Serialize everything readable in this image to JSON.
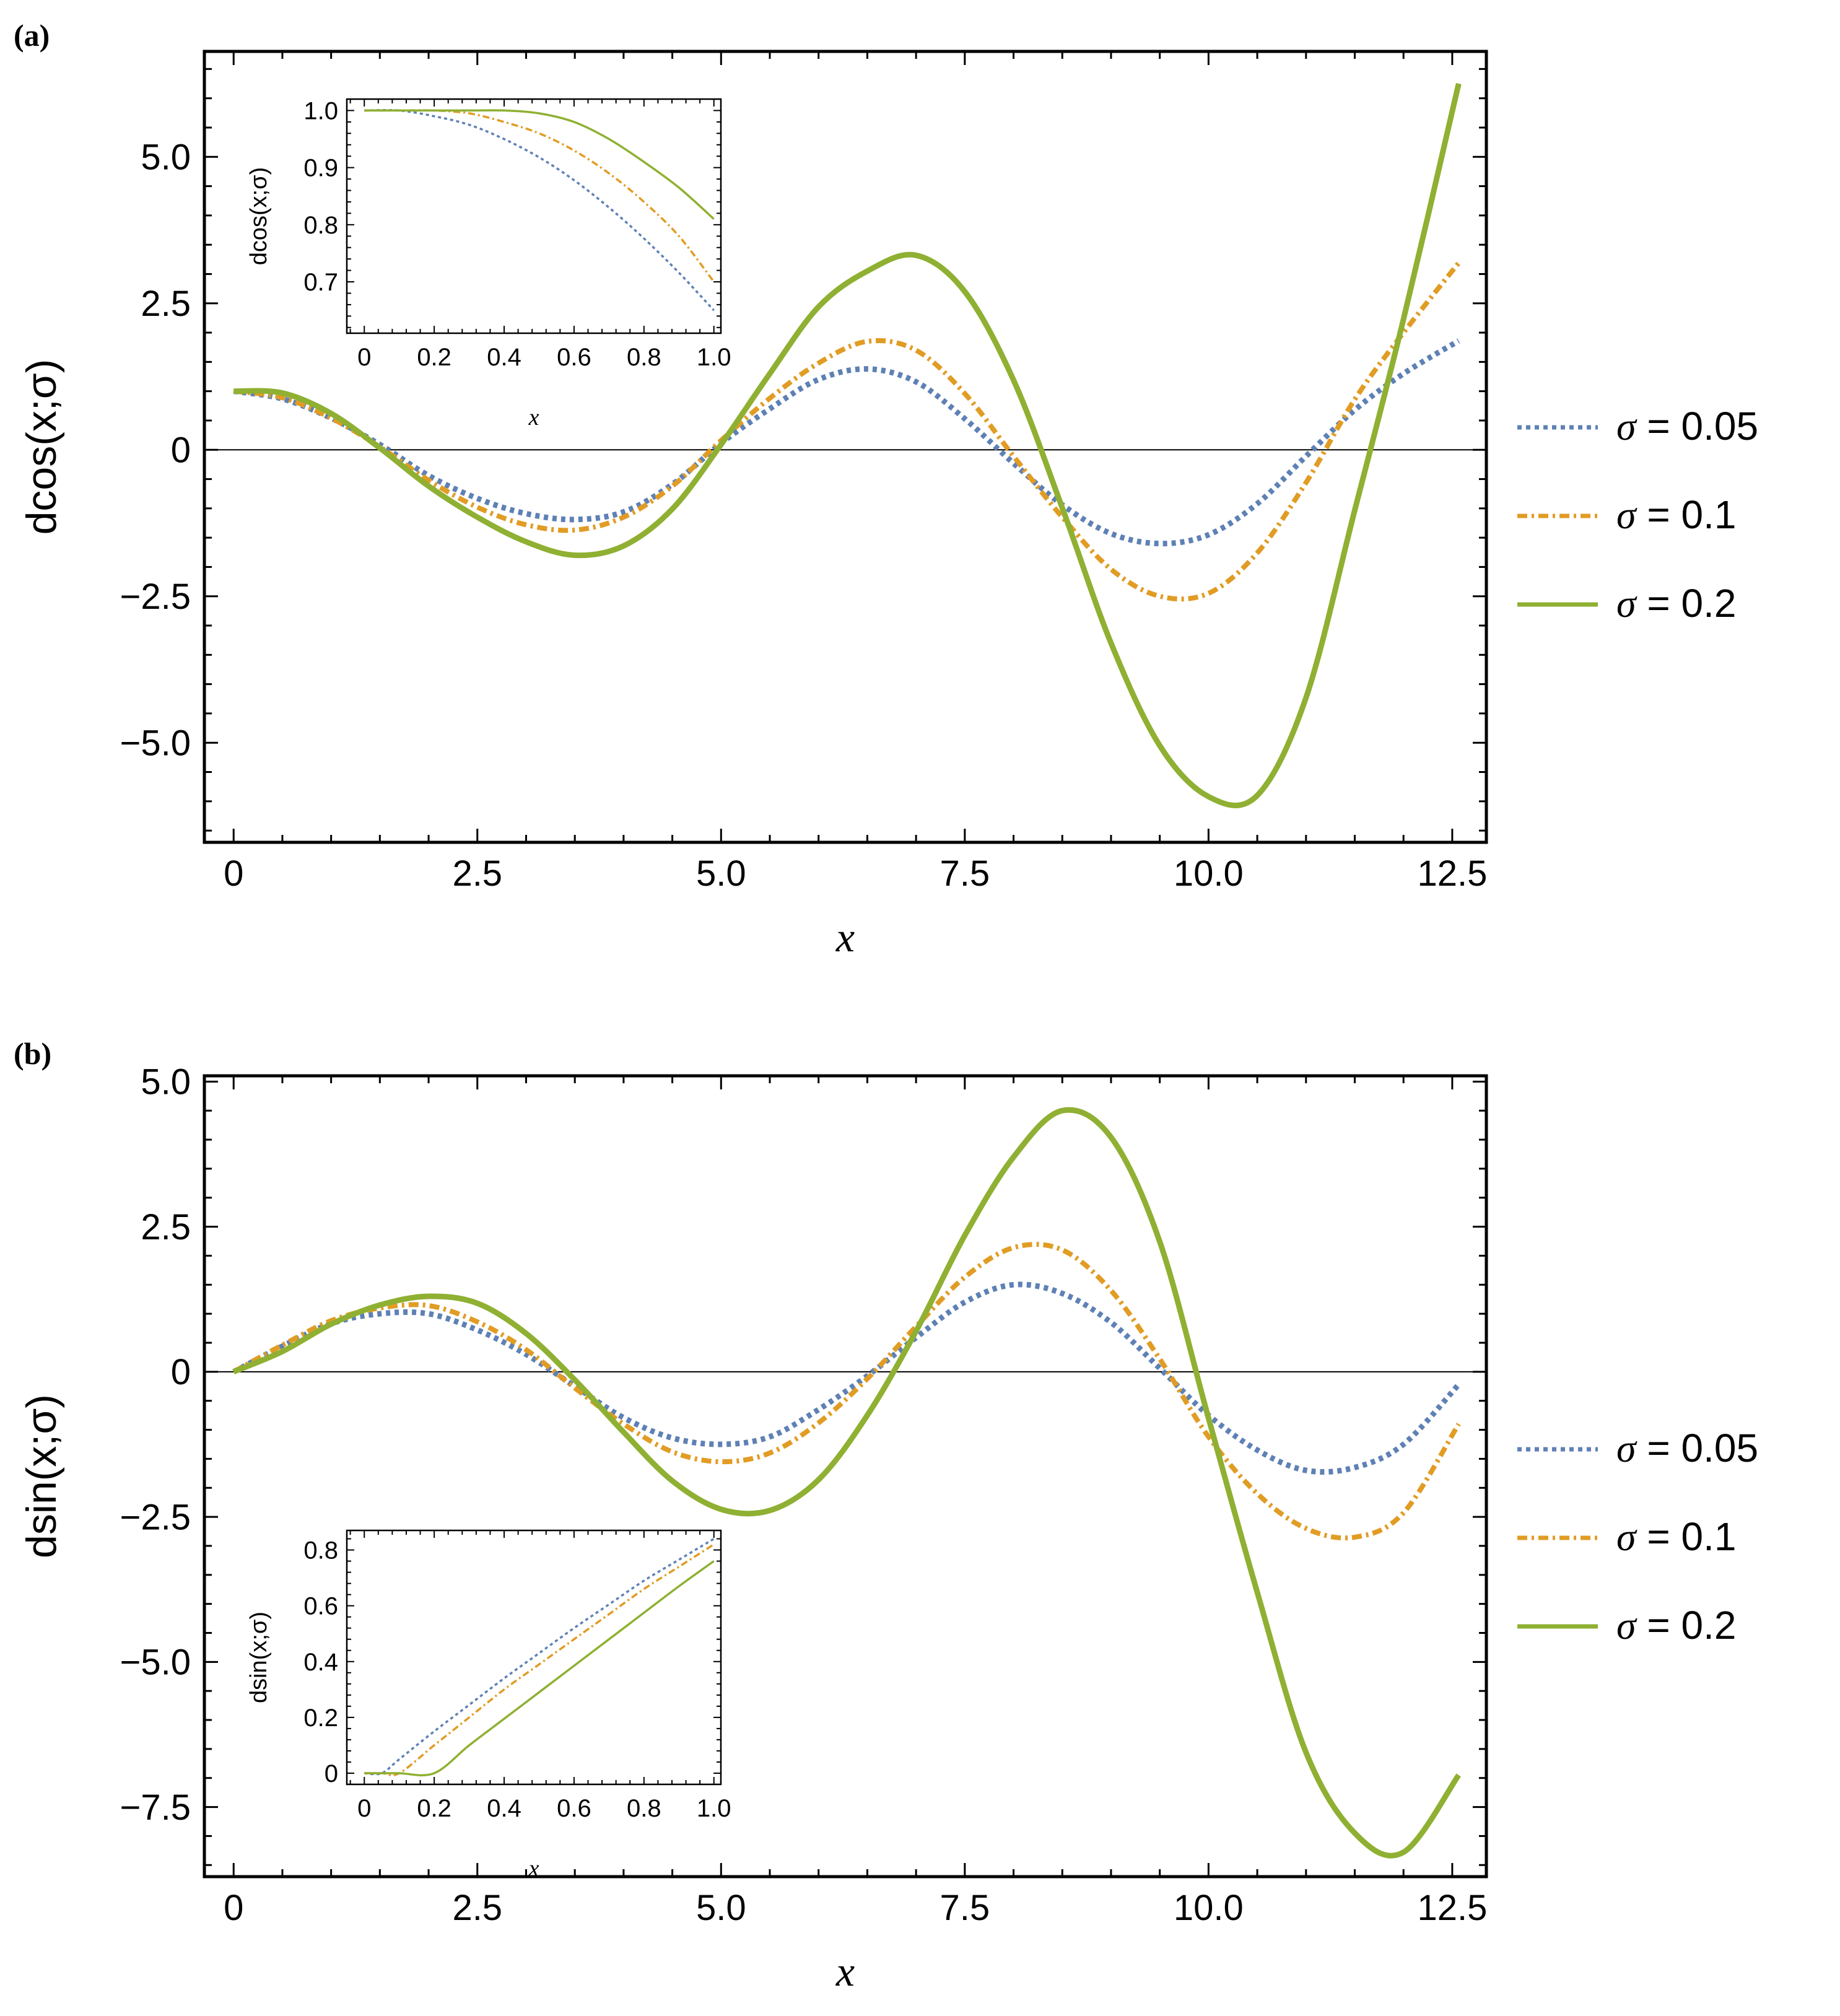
{
  "figure": {
    "panels": [
      {
        "label": "(a)"
      },
      {
        "label": "(b)"
      }
    ]
  },
  "legend": {
    "entries": [
      {
        "symbol": "σ",
        "text": " = 0.05",
        "color": "#5E81B5",
        "dash": "dotted"
      },
      {
        "symbol": "σ",
        "text": " = 0.1",
        "color": "#E19C24",
        "dash": "dotdash"
      },
      {
        "symbol": "σ",
        "text": " = 0.2",
        "color": "#8FB032",
        "dash": "solid"
      }
    ]
  },
  "chart_data": [
    {
      "id": "a",
      "type": "line",
      "title": "",
      "xlabel": "x",
      "ylabel": "dcos(x;σ)",
      "xlim": [
        -0.3,
        12.85
      ],
      "ylim": [
        -6.7,
        6.8
      ],
      "xticks": [
        0,
        2.5,
        5.0,
        7.5,
        10.0,
        12.5
      ],
      "xtick_labels": [
        "0",
        "2.5",
        "5.0",
        "7.5",
        "10.0",
        "12.5"
      ],
      "yticks": [
        -5.0,
        -2.5,
        0,
        2.5,
        5.0
      ],
      "ytick_labels": [
        "−5.0",
        "−2.5",
        "0",
        "2.5",
        "5.0"
      ],
      "zero_line": true,
      "grid": false,
      "x": [
        0,
        0.5,
        1,
        1.5,
        2,
        2.5,
        3,
        3.5,
        4,
        4.5,
        5,
        5.5,
        6,
        6.5,
        7,
        7.5,
        8,
        8.5,
        9,
        9.5,
        10,
        10.5,
        11,
        11.5,
        12,
        12.566
      ],
      "series": [
        {
          "name": "σ = 0.05",
          "values": [
            1.0,
            0.87,
            0.54,
            0.09,
            -0.44,
            -0.83,
            -1.09,
            -1.19,
            -1.06,
            -0.59,
            0.11,
            0.7,
            1.2,
            1.38,
            1.16,
            0.53,
            -0.23,
            -0.94,
            -1.43,
            -1.6,
            -1.45,
            -0.92,
            -0.11,
            0.68,
            1.3,
            1.86
          ]
        },
        {
          "name": "σ = 0.1",
          "values": [
            1.0,
            0.89,
            0.54,
            0.05,
            -0.52,
            -0.98,
            -1.28,
            -1.37,
            -1.15,
            -0.62,
            0.16,
            0.88,
            1.48,
            1.85,
            1.7,
            0.96,
            -0.11,
            -1.15,
            -2.04,
            -2.5,
            -2.45,
            -1.76,
            -0.56,
            0.86,
            2.0,
            3.19
          ]
        },
        {
          "name": "σ = 0.2",
          "values": [
            1.0,
            0.97,
            0.62,
            0.03,
            -0.62,
            -1.15,
            -1.57,
            -1.8,
            -1.64,
            -1.01,
            0.09,
            1.3,
            2.44,
            3.05,
            3.32,
            2.7,
            1.19,
            -0.99,
            -3.3,
            -5.05,
            -5.92,
            -5.9,
            -4.23,
            -1.03,
            2.23,
            6.25
          ]
        }
      ],
      "inset": {
        "xlabel": "x",
        "ylabel": "dcos(x;σ)",
        "xlim": [
          -0.05,
          1.02
        ],
        "ylim": [
          0.61,
          1.02
        ],
        "xticks": [
          0,
          0.2,
          0.4,
          0.6,
          0.8,
          1.0
        ],
        "xtick_labels": [
          "0",
          "0.2",
          "0.4",
          "0.6",
          "0.8",
          "1.0"
        ],
        "yticks": [
          0.7,
          0.8,
          0.9,
          1.0
        ],
        "ytick_labels": [
          "0.7",
          "0.8",
          "0.9",
          "1.0"
        ],
        "x": [
          0,
          0.1,
          0.2,
          0.3,
          0.4,
          0.5,
          0.6,
          0.7,
          0.8,
          0.9,
          1.0
        ],
        "series": [
          {
            "name": "σ = 0.05",
            "values": [
              1.0,
              1.0,
              0.99,
              0.975,
              0.95,
              0.918,
              0.878,
              0.83,
              0.776,
              0.716,
              0.65
            ]
          },
          {
            "name": "σ = 0.1",
            "values": [
              1.0,
              1.0,
              1.0,
              0.995,
              0.98,
              0.96,
              0.93,
              0.89,
              0.84,
              0.78,
              0.7
            ]
          },
          {
            "name": "σ = 0.2",
            "values": [
              1.0,
              1.0,
              1.0,
              1.0,
              1.0,
              0.995,
              0.98,
              0.95,
              0.91,
              0.865,
              0.81
            ]
          }
        ]
      }
    },
    {
      "id": "b",
      "type": "line",
      "title": "",
      "xlabel": "x",
      "ylabel": "dsin(x;σ)",
      "xlim": [
        -0.3,
        12.85
      ],
      "ylim": [
        -8.7,
        5.1
      ],
      "xticks": [
        0,
        2.5,
        5.0,
        7.5,
        10.0,
        12.5
      ],
      "xtick_labels": [
        "0",
        "2.5",
        "5.0",
        "7.5",
        "10.0",
        "12.5"
      ],
      "yticks": [
        -7.5,
        -5.0,
        -2.5,
        0,
        2.5,
        5.0
      ],
      "ytick_labels": [
        "−7.5",
        "−5.0",
        "−2.5",
        "0",
        "2.5",
        "5.0"
      ],
      "zero_line": true,
      "grid": false,
      "x": [
        0,
        0.5,
        1,
        1.5,
        2,
        2.5,
        3,
        3.5,
        4,
        4.5,
        5,
        5.5,
        6,
        6.5,
        7,
        7.5,
        8,
        8.5,
        9,
        9.5,
        10,
        10.5,
        11,
        11.5,
        12,
        12.566
      ],
      "series": [
        {
          "name": "σ = 0.05",
          "values": [
            0,
            0.44,
            0.83,
            1.0,
            1.0,
            0.72,
            0.3,
            -0.25,
            -0.79,
            -1.14,
            -1.25,
            -1.12,
            -0.65,
            -0.07,
            0.59,
            1.2,
            1.5,
            1.35,
            0.85,
            0.06,
            -0.75,
            -1.35,
            -1.7,
            -1.65,
            -1.25,
            -0.22
          ]
        },
        {
          "name": "σ = 0.1",
          "values": [
            0,
            0.46,
            0.88,
            1.1,
            1.14,
            0.86,
            0.38,
            -0.28,
            -0.9,
            -1.38,
            -1.55,
            -1.4,
            -0.88,
            -0.12,
            0.78,
            1.63,
            2.14,
            2.1,
            1.4,
            0.22,
            -1.12,
            -2.1,
            -2.7,
            -2.85,
            -2.43,
            -0.9
          ]
        },
        {
          "name": "σ = 0.2",
          "values": [
            0,
            0.35,
            0.82,
            1.15,
            1.3,
            1.18,
            0.66,
            -0.14,
            -1.04,
            -1.88,
            -2.37,
            -2.39,
            -1.86,
            -0.75,
            0.7,
            2.35,
            3.7,
            4.5,
            4.04,
            2.24,
            -0.8,
            -3.8,
            -6.56,
            -7.95,
            -8.28,
            -6.95
          ]
        }
      ],
      "inset": {
        "xlabel": "x",
        "ylabel": "dsin(x;σ)",
        "xlim": [
          -0.05,
          1.02
        ],
        "ylim": [
          -0.04,
          0.87
        ],
        "xticks": [
          0,
          0.2,
          0.4,
          0.6,
          0.8,
          1.0
        ],
        "xtick_labels": [
          "0",
          "0.2",
          "0.4",
          "0.6",
          "0.8",
          "1.0"
        ],
        "yticks": [
          0,
          0.2,
          0.4,
          0.6,
          0.8
        ],
        "ytick_labels": [
          "0",
          "0.2",
          "0.4",
          "0.6",
          "0.8"
        ],
        "x": [
          0,
          0.05,
          0.1,
          0.2,
          0.3,
          0.4,
          0.5,
          0.6,
          0.7,
          0.8,
          0.9,
          1.0
        ],
        "series": [
          {
            "name": "σ = 0.05",
            "values": [
              0,
              0,
              0.05,
              0.15,
              0.245,
              0.34,
              0.43,
              0.52,
              0.605,
              0.69,
              0.765,
              0.84
            ]
          },
          {
            "name": "σ = 0.1",
            "values": [
              0,
              0,
              0,
              0.1,
              0.2,
              0.3,
              0.39,
              0.48,
              0.57,
              0.66,
              0.74,
              0.82
            ]
          },
          {
            "name": "σ = 0.2",
            "values": [
              0,
              0,
              0,
              0,
              0.1,
              0.195,
              0.29,
              0.385,
              0.48,
              0.575,
              0.67,
              0.76
            ]
          }
        ]
      }
    }
  ]
}
